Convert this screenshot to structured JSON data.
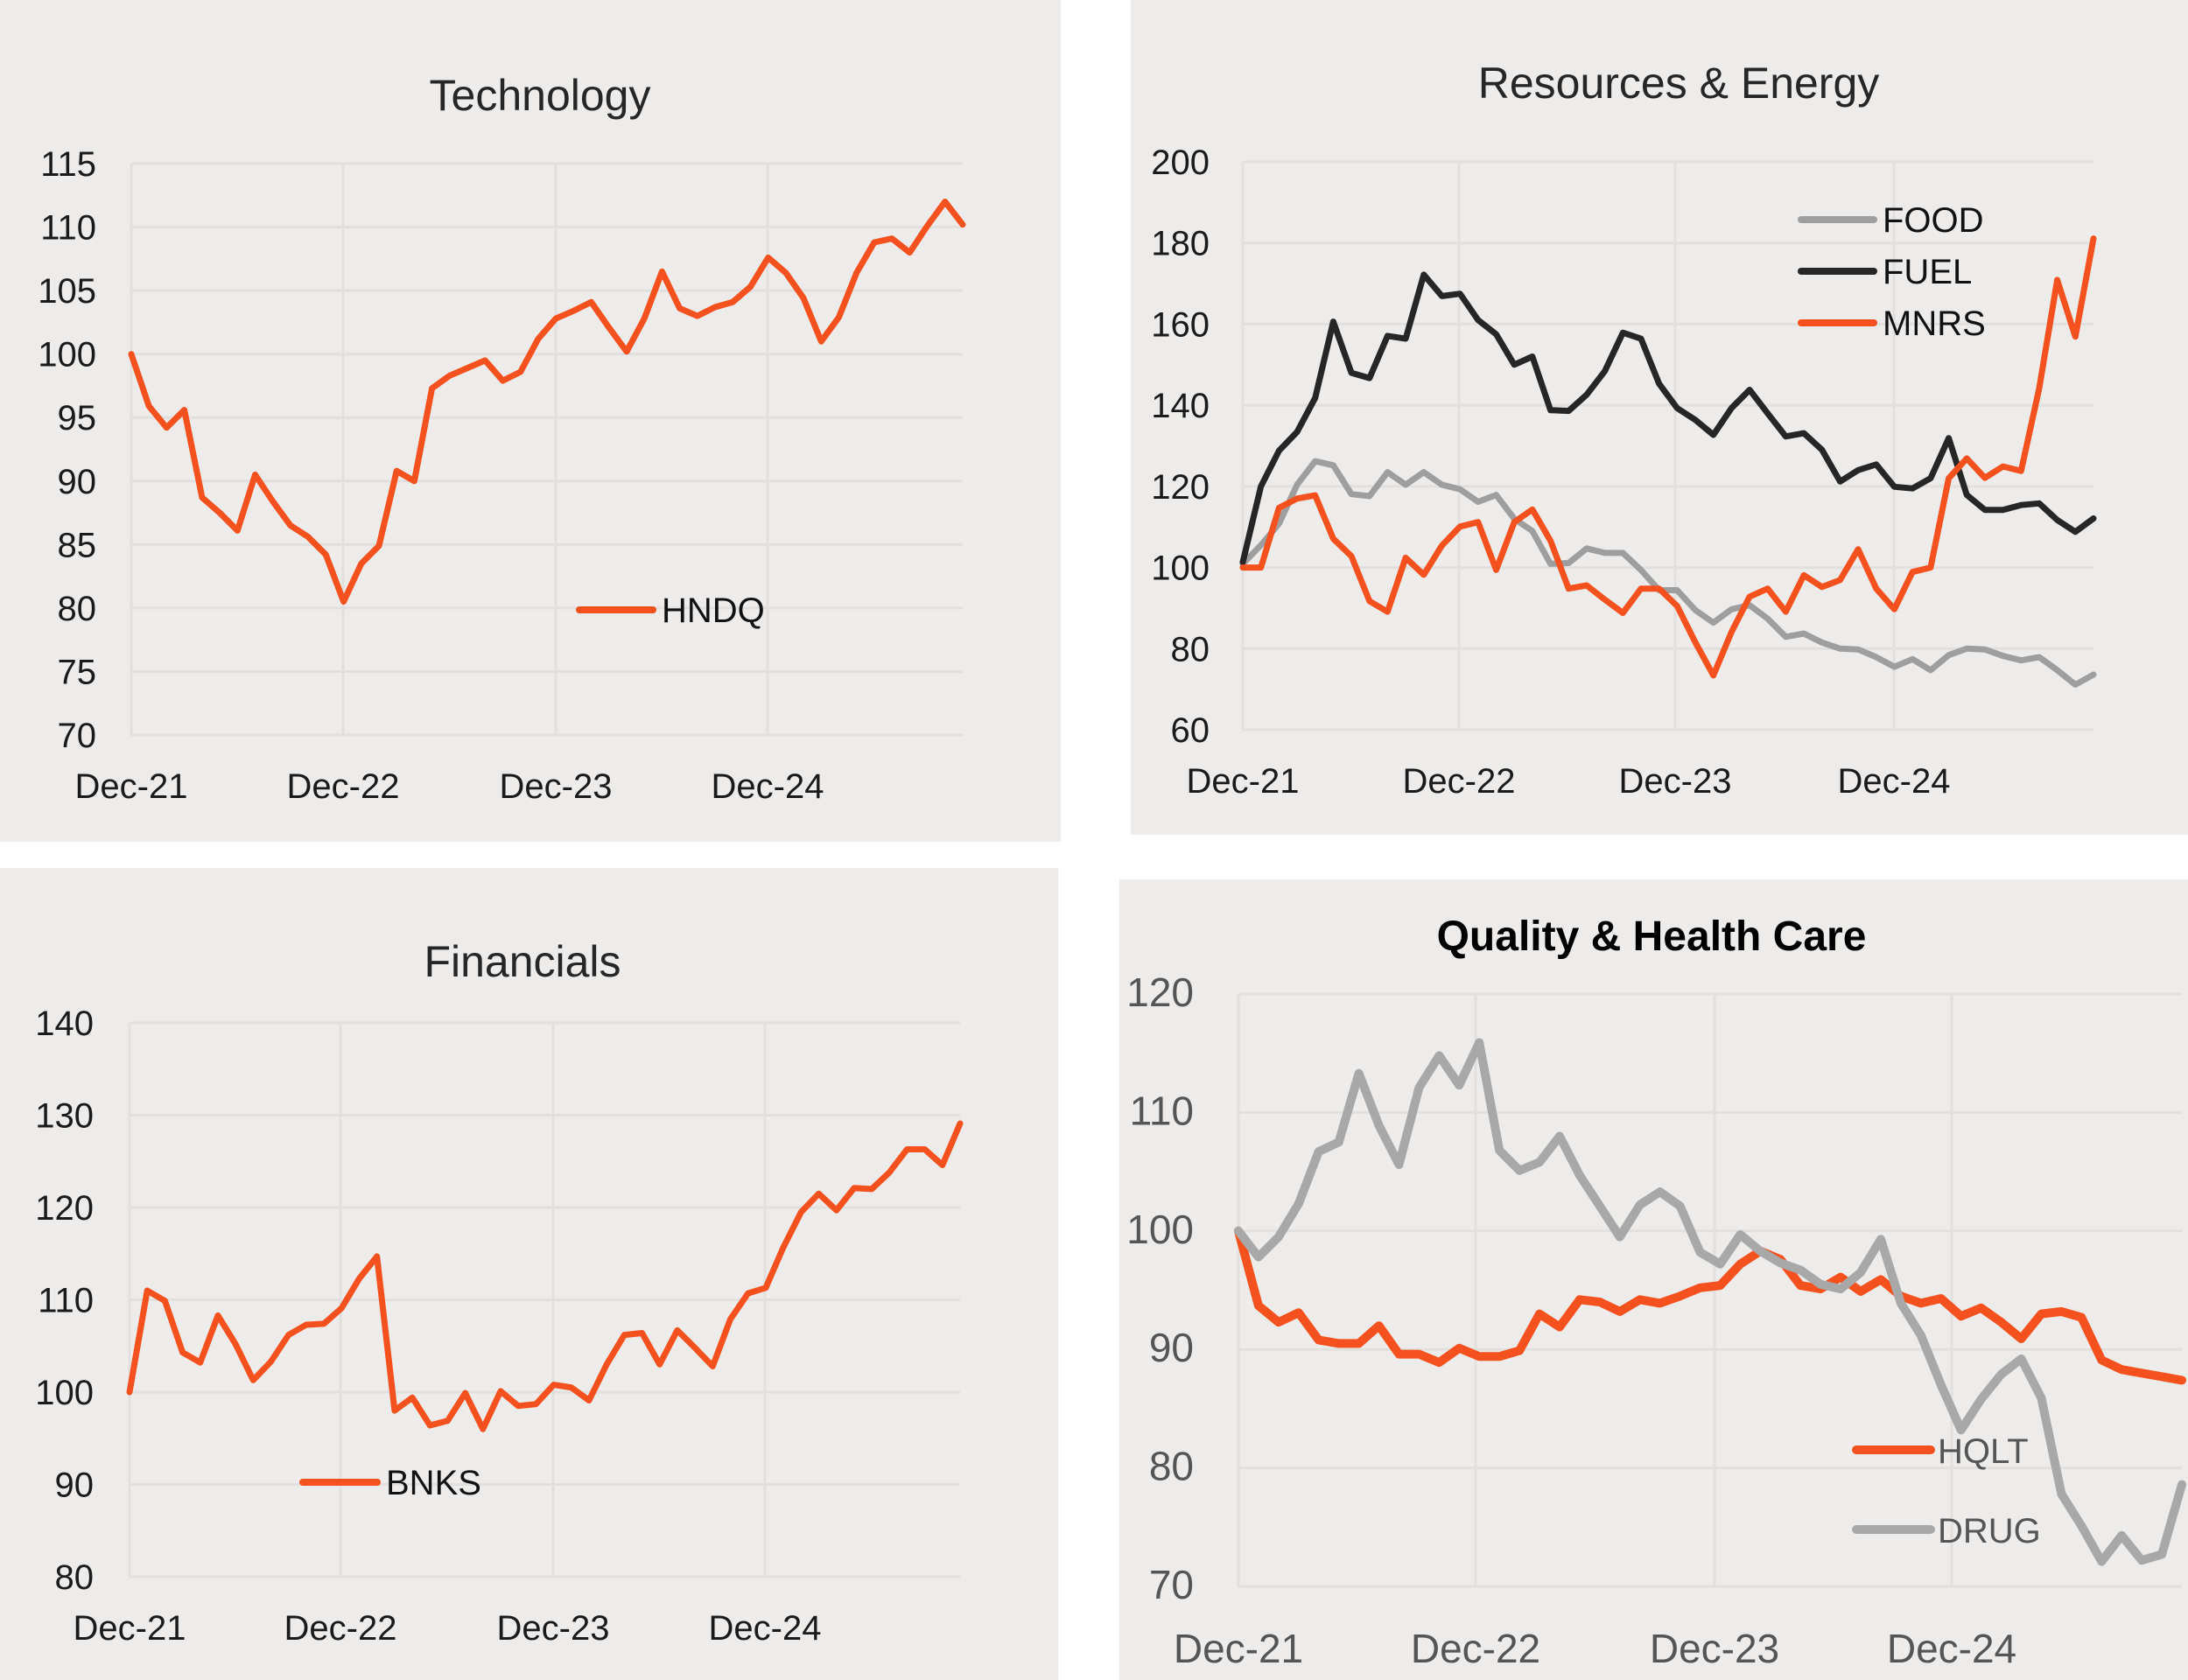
{
  "colors": {
    "orange": "#f4511e",
    "black": "#262626",
    "gray": "#9e9e9e",
    "lightgray": "#a8a8a8",
    "panel": "#eeecea"
  },
  "chart_data": [
    {
      "type": "line",
      "title": "Technology",
      "xlabel": "",
      "ylabel": "",
      "ylim": [
        70,
        115
      ],
      "yticks": [
        "70",
        "75",
        "80",
        "85",
        "90",
        "95",
        "100",
        "105",
        "110",
        "115"
      ],
      "xtick_labels": [
        "Dec-21",
        "Dec-22",
        "Dec-23",
        "Dec-24"
      ],
      "x_range": "Dec-21 to Nov-25 (monthly)",
      "grid": true,
      "legend_position": "lower-center",
      "series": [
        {
          "name": "HNDQ",
          "color": "#f4511e",
          "values": [
            100,
            95.9,
            94.2,
            95.6,
            88.7,
            87.5,
            86.1,
            90.5,
            88.4,
            86.5,
            85.6,
            84.2,
            80.5,
            83.5,
            84.9,
            90.8,
            90.0,
            97.3,
            98.3,
            98.9,
            99.5,
            97.9,
            98.6,
            101.2,
            102.8,
            103.4,
            104.1,
            102.1,
            100.2,
            102.8,
            106.5,
            103.6,
            103.0,
            103.7,
            104.1,
            105.3,
            107.6,
            106.4,
            104.4,
            101.0,
            102.9,
            106.4,
            108.8,
            109.1,
            108.0,
            110.1,
            112.0,
            110.2
          ]
        }
      ]
    },
    {
      "type": "line",
      "title": "Resources & Energy",
      "xlabel": "",
      "ylabel": "",
      "ylim": [
        60,
        200
      ],
      "yticks": [
        "60",
        "80",
        "100",
        "120",
        "140",
        "160",
        "180",
        "200"
      ],
      "xtick_labels": [
        "Dec-21",
        "Dec-22",
        "Dec-23",
        "Dec-24"
      ],
      "x_range": "Dec-21 to Nov-25 (monthly)",
      "grid": true,
      "legend_position": "top-right",
      "series": [
        {
          "name": "FOOD",
          "color": "#9e9e9e",
          "values": [
            100.9,
            105.5,
            110.8,
            120.4,
            126.2,
            125.2,
            118.1,
            117.6,
            123.5,
            120.4,
            123.5,
            120.4,
            119.3,
            116.2,
            117.9,
            112.0,
            109.0,
            100.9,
            101.1,
            104.7,
            103.6,
            103.6,
            99.4,
            94.4,
            94.4,
            89.5,
            86.4,
            89.7,
            90.7,
            87.4,
            82.9,
            83.7,
            81.5,
            80.0,
            79.8,
            77.9,
            75.5,
            77.4,
            74.7,
            78.4,
            80.0,
            79.8,
            78.2,
            77.1,
            77.9,
            74.7,
            71.1,
            73.6
          ]
        },
        {
          "name": "FUEL",
          "color": "#262626",
          "values": [
            101.3,
            120.0,
            128.8,
            133.4,
            141.8,
            160.6,
            148.0,
            146.7,
            157.1,
            156.4,
            172.2,
            166.9,
            167.5,
            161.0,
            157.5,
            150.0,
            152.0,
            138.8,
            138.6,
            142.6,
            148.4,
            157.9,
            156.4,
            145.3,
            139.3,
            136.4,
            132.7,
            139.3,
            143.8,
            138.0,
            132.3,
            133.1,
            129.0,
            121.2,
            124.0,
            125.4,
            119.9,
            119.5,
            122.0,
            131.9,
            117.9,
            114.2,
            114.2,
            115.4,
            115.8,
            111.7,
            108.8,
            112.1
          ]
        },
        {
          "name": "MNRS",
          "color": "#f4511e",
          "values": [
            100.0,
            100.0,
            114.7,
            117.0,
            117.8,
            107.1,
            102.8,
            91.7,
            89.1,
            102.4,
            98.2,
            105.4,
            110.1,
            111.2,
            99.4,
            111.2,
            114.3,
            106.6,
            94.8,
            95.6,
            92.1,
            88.8,
            94.8,
            94.8,
            90.5,
            81.6,
            73.4,
            84.1,
            92.8,
            94.8,
            89.1,
            98.1,
            95.2,
            96.9,
            104.5,
            94.8,
            89.7,
            98.9,
            100.0,
            122.0,
            126.9,
            122.1,
            124.9,
            123.8,
            144.2,
            170.9,
            156.9,
            181.1
          ]
        }
      ]
    },
    {
      "type": "line",
      "title": "Financials",
      "xlabel": "",
      "ylabel": "",
      "ylim": [
        80,
        140
      ],
      "yticks": [
        "80",
        "90",
        "100",
        "110",
        "120",
        "130",
        "140"
      ],
      "xtick_labels": [
        "Dec-21",
        "Dec-22",
        "Dec-23",
        "Dec-24"
      ],
      "x_range": "Dec-21 to Nov-25 (monthly)",
      "grid": true,
      "legend_position": "lower-left",
      "series": [
        {
          "name": "BNKS",
          "color": "#f4511e",
          "values": [
            100.0,
            111.0,
            109.9,
            104.3,
            103.2,
            108.3,
            105.2,
            101.3,
            103.3,
            106.2,
            107.3,
            107.4,
            109.1,
            112.3,
            114.7,
            98.0,
            99.4,
            96.4,
            96.9,
            99.9,
            96.0,
            100.1,
            98.5,
            98.7,
            100.8,
            100.5,
            99.1,
            103.0,
            106.2,
            106.4,
            103.0,
            106.7,
            104.8,
            102.8,
            107.9,
            110.7,
            111.3,
            115.7,
            119.5,
            121.5,
            119.7,
            122.1,
            122.0,
            123.8,
            126.3,
            126.3,
            124.6,
            129.1
          ]
        }
      ]
    },
    {
      "type": "line",
      "title": "Quality & Health Care",
      "xlabel": "",
      "ylabel": "",
      "ylim": [
        70,
        120
      ],
      "yticks": [
        "70",
        "80",
        "90",
        "100",
        "110",
        "120"
      ],
      "xtick_labels": [
        "Dec-21",
        "Dec-22",
        "Dec-23",
        "Dec-24"
      ],
      "x_range": "Dec-21 to Nov-25 (monthly)",
      "grid": true,
      "legend_position": "lower-right",
      "series": [
        {
          "name": "HQLT",
          "color": "#f4511e",
          "values": [
            100.0,
            93.7,
            92.3,
            93.1,
            90.8,
            90.5,
            90.5,
            92.0,
            89.6,
            89.6,
            88.9,
            90.1,
            89.4,
            89.4,
            89.9,
            93.0,
            91.9,
            94.2,
            94.0,
            93.2,
            94.2,
            93.9,
            94.5,
            95.2,
            95.4,
            97.2,
            98.3,
            97.6,
            95.4,
            95.1,
            96.1,
            94.9,
            95.9,
            94.5,
            93.9,
            94.3,
            92.8,
            93.5,
            92.3,
            90.9,
            93.0,
            93.2,
            92.7,
            89.1,
            88.3,
            88.0,
            87.7,
            87.4
          ]
        },
        {
          "name": "DRUG",
          "color": "#a8a8a8",
          "values": [
            100.0,
            97.8,
            99.5,
            102.3,
            106.7,
            107.5,
            113.3,
            108.9,
            105.6,
            112.1,
            114.8,
            112.3,
            115.9,
            106.8,
            105.1,
            105.8,
            108.0,
            104.7,
            102.1,
            99.5,
            102.2,
            103.3,
            102.1,
            98.2,
            97.2,
            99.7,
            98.3,
            97.3,
            96.7,
            95.5,
            95.1,
            96.5,
            99.3,
            93.9,
            91.2,
            87.0,
            83.2,
            85.8,
            87.9,
            89.2,
            85.9,
            77.8,
            75.1,
            72.1,
            74.3,
            72.2,
            72.7,
            78.6
          ]
        }
      ]
    }
  ]
}
